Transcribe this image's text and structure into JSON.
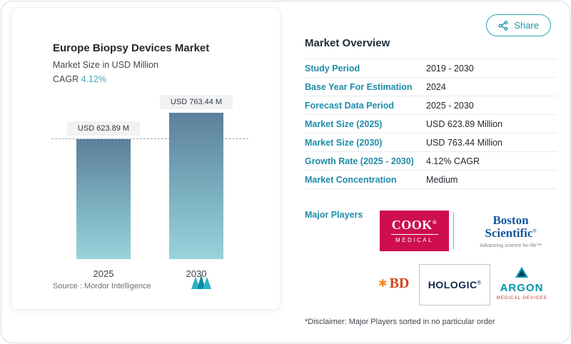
{
  "share": {
    "label": "Share"
  },
  "chart_card": {
    "title": "Europe Biopsy Devices Market",
    "subtitle": "Market Size in USD Million",
    "cagr_label": "CAGR",
    "cagr_value": "4.12%",
    "source_label": "Source :",
    "source_name": "Mordor Intelligence"
  },
  "chart_data": {
    "type": "bar",
    "title": "Europe Biopsy Devices Market",
    "ylabel": "Market Size in USD Million",
    "categories": [
      "2025",
      "2030"
    ],
    "values": [
      623.89,
      763.44
    ],
    "bar_labels": [
      "USD 623.89 M",
      "USD 763.44 M"
    ],
    "unit": "USD Million",
    "cagr_percent": 4.12,
    "reference_line": 623.89,
    "ylim": [
      0,
      763.44
    ],
    "grid": false,
    "legend": "none",
    "bar_gradient": [
      "#5d7f9b",
      "#99d3db"
    ]
  },
  "overview": {
    "title": "Market Overview",
    "rows": [
      {
        "label": "Study Period",
        "value": "2019 - 2030"
      },
      {
        "label": "Base Year For Estimation",
        "value": "2024"
      },
      {
        "label": "Forecast Data Period",
        "value": "2025 - 2030"
      },
      {
        "label": "Market Size (2025)",
        "value": "USD 623.89 Million"
      },
      {
        "label": "Market Size (2030)",
        "value": "USD 763.44 Million"
      },
      {
        "label": "Growth Rate (2025 - 2030)",
        "value": "4.12% CAGR"
      },
      {
        "label": "Market Concentration",
        "value": "Medium"
      }
    ],
    "major_players_label": "Major Players",
    "disclaimer": "*Disclaimer: Major Players sorted in no particular order"
  },
  "players": {
    "cook": {
      "name": "COOK",
      "reg": "®",
      "sub": "MEDICAL"
    },
    "boston": {
      "line1": "Boston",
      "line2": "Scientific",
      "reg": "®",
      "tagline": "Advancing science for life™"
    },
    "bd": {
      "name": "BD"
    },
    "hologic": {
      "name": "HOLOGIC",
      "reg": "®"
    },
    "argon": {
      "name": "ARGON",
      "sub": "MEDICAL DEVICES"
    }
  },
  "colors": {
    "accent_teal": "#1e8ca8",
    "cagr_teal": "#3aabbd",
    "navy_text": "#1c2b36",
    "cook_red": "#ce0e4e",
    "boston_blue": "#15559e",
    "bd_orange": "#cf4520",
    "hologic_navy": "#12284c",
    "argon_teal": "#0097a9"
  }
}
